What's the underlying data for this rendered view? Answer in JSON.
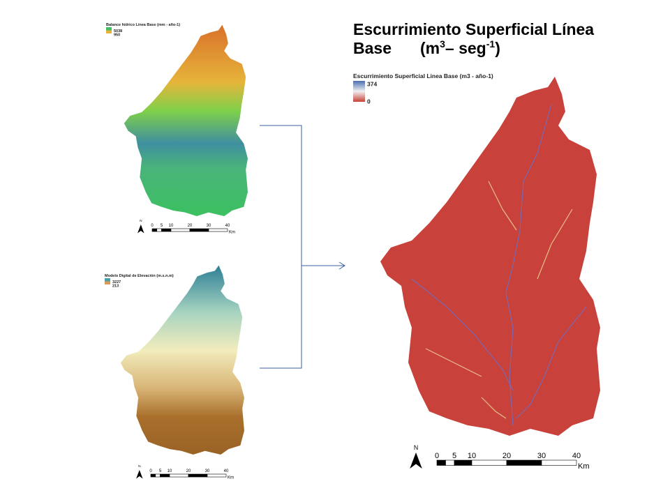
{
  "title": {
    "line1": "Escurrimiento Superficial Línea",
    "line2": "Base",
    "unit": "(m",
    "sup1": "3",
    "mid": "– seg",
    "sup2": "-1",
    "close": ")"
  },
  "maps": [
    {
      "legend_title": "Balance hídrico Línea Base (mm - año-1)",
      "legend_max": "5038",
      "legend_min": "950",
      "north": "N",
      "scale_labels": [
        "0",
        "5",
        "10",
        "20",
        "30",
        "40"
      ],
      "scale_unit": "Km"
    },
    {
      "legend_title": "Modelo Digital de Elevación (m.s.n.m)",
      "legend_max": "3227",
      "legend_min": "213",
      "north": "N",
      "scale_labels": [
        "0",
        "5",
        "10",
        "20",
        "30",
        "40"
      ],
      "scale_unit": "Km"
    },
    {
      "legend_title": "Escurrimiento Superficial Linea Base (m3 - año-1)",
      "legend_max": "374",
      "legend_min": "0",
      "north": "N",
      "scale_labels": [
        "0",
        "5",
        "10",
        "20",
        "30",
        "40"
      ],
      "scale_unit": "Km"
    }
  ]
}
